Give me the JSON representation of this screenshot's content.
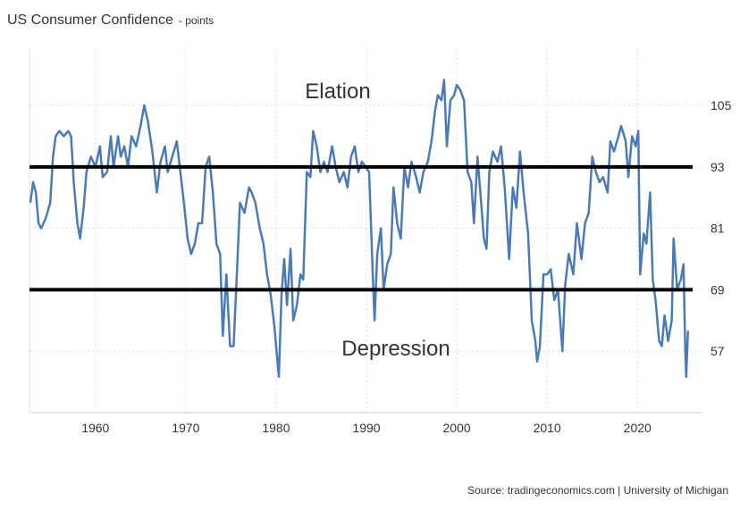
{
  "chart_data": {
    "type": "line",
    "title": "US Consumer Confidence",
    "subtitle": "- points",
    "source": "Source: tradingeconomics.com | University of Michigan",
    "color": "#4a7bb7",
    "x": [
      1952.8,
      1953.1,
      1953.4,
      1953.7,
      1954.0,
      1954.5,
      1955.0,
      1955.3,
      1955.6,
      1956.0,
      1956.5,
      1957.0,
      1957.3,
      1957.6,
      1958.0,
      1958.3,
      1958.7,
      1959.0,
      1959.5,
      1960.0,
      1960.5,
      1960.8,
      1961.3,
      1961.7,
      1962.0,
      1962.5,
      1962.8,
      1963.2,
      1963.6,
      1964.0,
      1964.5,
      1965.0,
      1965.4,
      1965.8,
      1966.3,
      1966.8,
      1967.2,
      1967.7,
      1968.0,
      1968.5,
      1969.0,
      1969.4,
      1969.8,
      1970.2,
      1970.6,
      1971.0,
      1971.4,
      1971.8,
      1972.2,
      1972.6,
      1973.0,
      1973.4,
      1973.8,
      1974.1,
      1974.5,
      1974.9,
      1975.3,
      1975.7,
      1976.0,
      1976.5,
      1977.0,
      1977.3,
      1977.7,
      1978.2,
      1978.6,
      1979.0,
      1979.4,
      1979.8,
      1980.3,
      1980.6,
      1980.9,
      1981.2,
      1981.6,
      1981.9,
      1982.3,
      1982.7,
      1983.0,
      1983.4,
      1983.8,
      1984.1,
      1984.5,
      1984.9,
      1985.3,
      1985.7,
      1986.2,
      1986.6,
      1987.0,
      1987.5,
      1987.9,
      1988.3,
      1988.7,
      1989.1,
      1989.5,
      1989.9,
      1990.3,
      1990.7,
      1990.9,
      1991.2,
      1991.6,
      1991.9,
      1992.3,
      1992.7,
      1993.0,
      1993.4,
      1993.8,
      1994.2,
      1994.6,
      1995.0,
      1995.5,
      1995.9,
      1996.3,
      1996.8,
      1997.2,
      1997.6,
      1997.9,
      1998.3,
      1998.6,
      1998.9,
      1999.3,
      1999.7,
      2000.0,
      2000.4,
      2000.8,
      2001.2,
      2001.6,
      2001.9,
      2002.3,
      2002.7,
      2003.0,
      2003.3,
      2003.6,
      2004.0,
      2004.5,
      2004.9,
      2005.3,
      2005.8,
      2006.2,
      2006.6,
      2007.0,
      2007.4,
      2007.9,
      2008.3,
      2008.7,
      2008.9,
      2009.2,
      2009.6,
      2010.0,
      2010.4,
      2010.8,
      2011.2,
      2011.7,
      2012.0,
      2012.4,
      2012.9,
      2013.3,
      2013.8,
      2014.2,
      2014.6,
      2015.0,
      2015.4,
      2015.8,
      2016.2,
      2016.7,
      2017.0,
      2017.4,
      2017.9,
      2018.2,
      2018.7,
      2019.0,
      2019.4,
      2019.8,
      2020.1,
      2020.3,
      2020.7,
      2021.0,
      2021.4,
      2021.7,
      2022.0,
      2022.4,
      2022.7,
      2023.0,
      2023.4,
      2023.8,
      2024.0,
      2024.4,
      2024.8,
      2025.1,
      2025.3,
      2025.4,
      2025.6
    ],
    "values": [
      86,
      90,
      88,
      82,
      81,
      83,
      86,
      95,
      99,
      100,
      99,
      100,
      99,
      90,
      82,
      79,
      85,
      92,
      95,
      93,
      97,
      91,
      92,
      99,
      93,
      99,
      95,
      97,
      93,
      99,
      97,
      101,
      105,
      102,
      96,
      88,
      94,
      97,
      92,
      95,
      98,
      92,
      86,
      79,
      76,
      78,
      82,
      82,
      93,
      95,
      88,
      78,
      76,
      60,
      72,
      58,
      58,
      74,
      86,
      84,
      89,
      88,
      86,
      81,
      78,
      72,
      68,
      62,
      52,
      68,
      75,
      66,
      77,
      63,
      66,
      72,
      71,
      92,
      91,
      100,
      97,
      92,
      94,
      92,
      97,
      93,
      90,
      92,
      89,
      95,
      97,
      92,
      94,
      93,
      92,
      72,
      63,
      76,
      81,
      69,
      74,
      76,
      89,
      82,
      79,
      93,
      89,
      94,
      91,
      88,
      92,
      94,
      98,
      104,
      107,
      106,
      110,
      97,
      106,
      107,
      109,
      108,
      106,
      92,
      90,
      82,
      95,
      86,
      79,
      77,
      92,
      96,
      94,
      97,
      89,
      75,
      89,
      85,
      96,
      88,
      80,
      63,
      59,
      55,
      58,
      72,
      72,
      73,
      67,
      69,
      57,
      70,
      76,
      72,
      82,
      75,
      82,
      84,
      95,
      92,
      90,
      91,
      88,
      98,
      96,
      99,
      101,
      98,
      91,
      99,
      97,
      100,
      72,
      80,
      78,
      88,
      71,
      67,
      59,
      58,
      64,
      59,
      63,
      79,
      69,
      71,
      74,
      57,
      52,
      61
    ],
    "xlim": [
      1952.7,
      2027.1
    ],
    "ylim": [
      45,
      116
    ],
    "xticks": [
      1960,
      1970,
      1980,
      1990,
      2000,
      2010,
      2020
    ],
    "yticks": [
      57,
      69,
      81,
      93,
      105
    ],
    "hlines": [
      93,
      69
    ],
    "annotations": [
      "Elation",
      "Depression"
    ],
    "grid": true
  }
}
